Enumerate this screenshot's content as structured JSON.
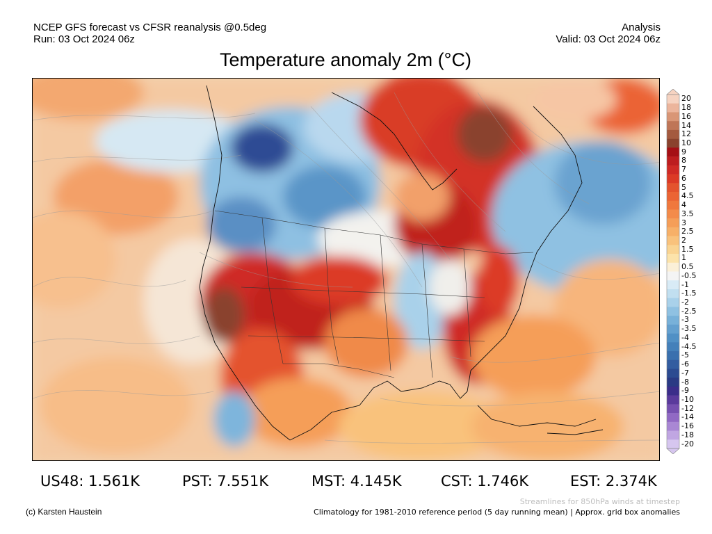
{
  "header": {
    "left_line1": "NCEP GFS forecast vs CFSR reanalysis @0.5deg",
    "left_line2": "Run: 03 Oct 2024 06z",
    "right_line1": "Analysis",
    "right_line2": "Valid: 03 Oct 2024 06z"
  },
  "title": "Temperature anomaly 2m (°C)",
  "colorbar": {
    "labels": [
      "20",
      "18",
      "16",
      "14",
      "12",
      "10",
      "9",
      "8",
      "7",
      "6",
      "5",
      "4.5",
      "4",
      "3.5",
      "3",
      "2.5",
      "2",
      "1.5",
      "1",
      "0.5",
      "-0.5",
      "-1",
      "-1.5",
      "-2",
      "-2.5",
      "-3",
      "-3.5",
      "-4",
      "-4.5",
      "-5",
      "-6",
      "-7",
      "-8",
      "-9",
      "-10",
      "-12",
      "-14",
      "-16",
      "-18",
      "-20"
    ],
    "colors": [
      "#f6d3c1",
      "#ecb59c",
      "#d99676",
      "#bf7657",
      "#a45a3f",
      "#8a422d",
      "#a50f15",
      "#bd1d1f",
      "#cf2a25",
      "#dc3a26",
      "#e4532d",
      "#eb6434",
      "#f0783d",
      "#f38b4a",
      "#f59e58",
      "#f7b068",
      "#f9c27c",
      "#fad492",
      "#fce3aa",
      "#fbf0d8",
      "#f4f4f4",
      "#d8ebf6",
      "#c1dff0",
      "#a9d1ea",
      "#8fc1e2",
      "#78b1d9",
      "#64a0cf",
      "#5190c5",
      "#4480ba",
      "#3a70ae",
      "#335da0",
      "#2c4b91",
      "#2a3a84",
      "#3b2d8a",
      "#5a3a9c",
      "#7650b0",
      "#9169c4",
      "#a987d4",
      "#c0a6e2",
      "#d6c6ef"
    ]
  },
  "stats": [
    {
      "text": "US48: 1.561K"
    },
    {
      "text": "PST: 7.551K"
    },
    {
      "text": "MST: 4.145K"
    },
    {
      "text": "CST: 1.746K"
    },
    {
      "text": "EST: 2.374K"
    }
  ],
  "footer": {
    "credit": "(c) Karsten Haustein",
    "streamlines_note": "Streamlines for 850hPa winds at timestep",
    "climatology_note": "Climatology for 1981-2010 reference period (5 day running mean) | Approx. grid box anomalies"
  }
}
